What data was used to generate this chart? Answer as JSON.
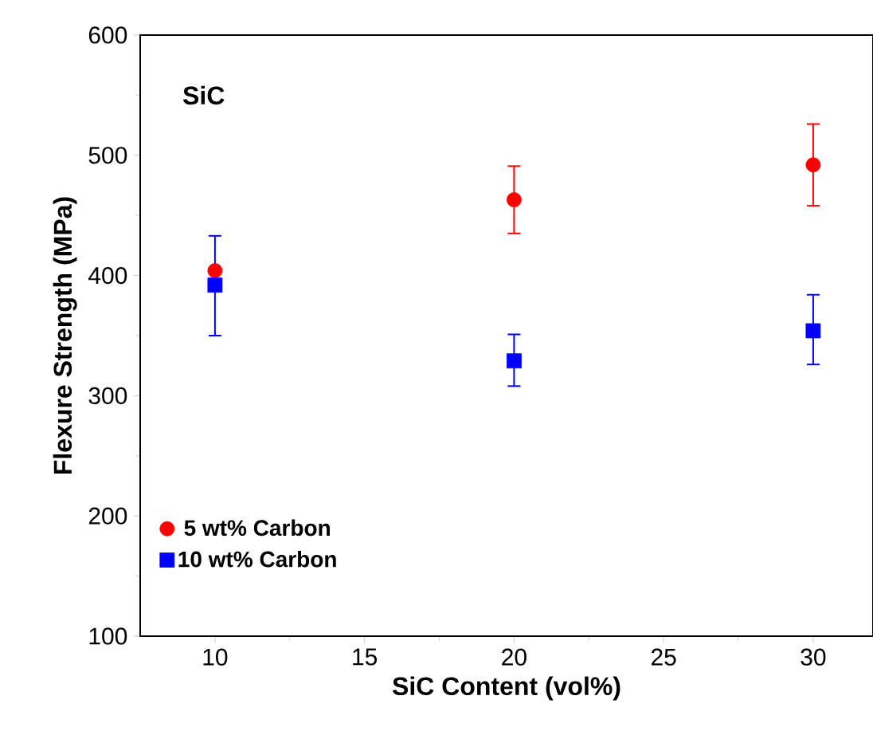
{
  "chart_data": {
    "type": "scatter",
    "xlabel": "SiC Content (vol%)",
    "ylabel": "Flexure Strength (MPa)",
    "annotations": [
      "SiC"
    ],
    "xlim": [
      7.5,
      32
    ],
    "xticks": [
      10,
      15,
      20,
      25,
      30
    ],
    "ylim": [
      100,
      600
    ],
    "yticks": [
      100,
      200,
      300,
      400,
      500,
      600
    ],
    "legend": "bottom left",
    "grid": false,
    "series": [
      {
        "name": "5 wt% Carbon",
        "color": "#ff0000",
        "marker": "circle",
        "x": [
          10,
          20,
          30
        ],
        "values": [
          404,
          463,
          492
        ],
        "errors": [
          null,
          [
            435,
            491
          ],
          [
            458,
            526
          ]
        ]
      },
      {
        "name": "10 wt% Carbon",
        "color": "#0000ff",
        "marker": "square",
        "x": [
          10,
          20,
          30
        ],
        "values": [
          392,
          329,
          354
        ],
        "errors": [
          [
            350,
            433
          ],
          [
            308,
            351
          ],
          [
            326,
            384
          ]
        ]
      }
    ]
  }
}
